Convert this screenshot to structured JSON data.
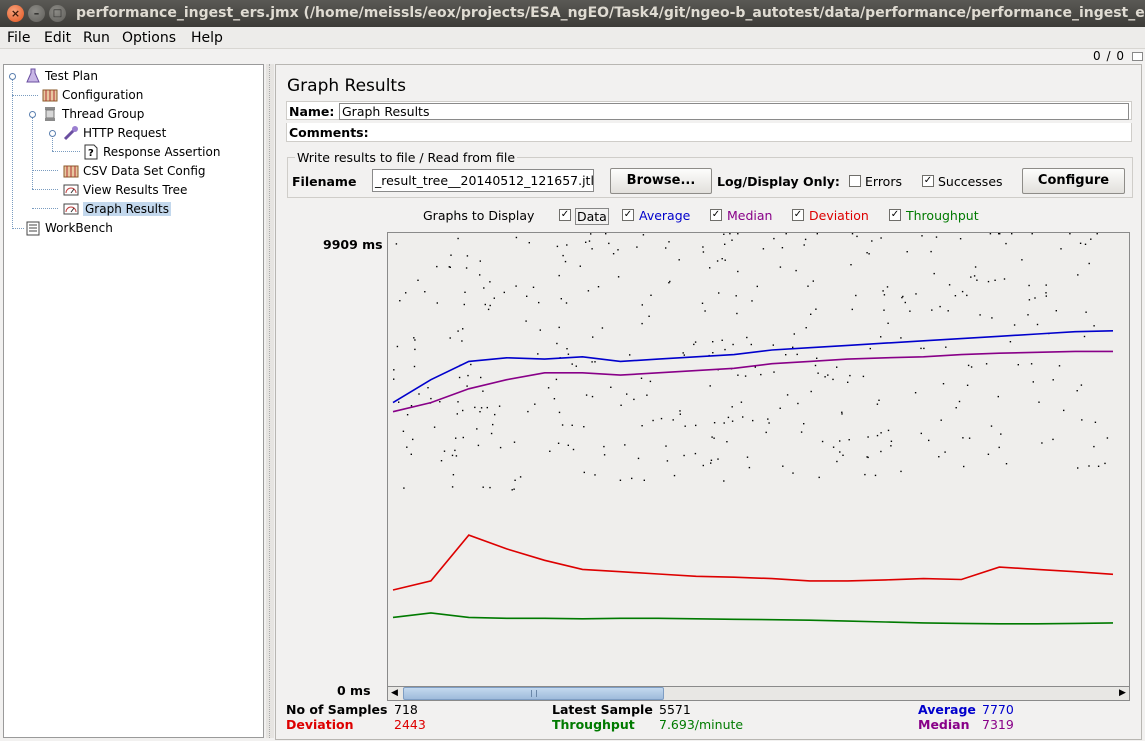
{
  "window": {
    "title": "performance_ingest_ers.jmx (/home/meissls/eox/projects/ESA_ngEO/Task4/git/ngeo-b_autotest/data/performance/performance_ingest_ers.jmx)",
    "close_glyph": "×",
    "minimize_glyph": "–",
    "maximize_glyph": "□"
  },
  "menu": {
    "file": "File",
    "edit": "Edit",
    "run": "Run",
    "options": "Options",
    "help": "Help"
  },
  "toolbar": {
    "counter": "0 / 0"
  },
  "tree": {
    "test_plan": "Test Plan",
    "configuration": "Configuration",
    "thread_group": "Thread Group",
    "http_request": "HTTP Request",
    "response_assertion": "Response Assertion",
    "csv_data_set": "CSV Data Set Config",
    "view_results_tree": "View Results Tree",
    "graph_results": "Graph Results",
    "workbench": "WorkBench"
  },
  "panel": {
    "title": "Graph Results",
    "name_label": "Name:",
    "name_value": "Graph Results",
    "comments_label": "Comments:",
    "file_section_title": "Write results to file / Read from file",
    "filename_label": "Filename",
    "filename_value": "_result_tree__20140512_121657.jtl",
    "browse_label": "Browse...",
    "log_display_label": "Log/Display Only:",
    "errors_label": "Errors",
    "errors_checked": false,
    "successes_label": "Successes",
    "successes_checked": true,
    "configure_label": "Configure"
  },
  "graphs": {
    "label": "Graphs to Display",
    "data": "Data",
    "average": "Average",
    "median": "Median",
    "deviation": "Deviation",
    "throughput": "Throughput",
    "check": "✓"
  },
  "colors": {
    "data": "#000000",
    "average": "#0000cc",
    "median": "#880088",
    "deviation": "#dd0000",
    "throughput": "#007a00"
  },
  "chart_data": {
    "type": "line",
    "ylabel_top": "9909 ms",
    "ylabel_bottom": "0 ms",
    "ylim": [
      0,
      9909
    ],
    "series": [
      {
        "name": "Average",
        "values": [
          6200,
          6700,
          7100,
          7180,
          7150,
          7200,
          7100,
          7150,
          7200,
          7250,
          7350,
          7400,
          7450,
          7500,
          7550,
          7600,
          7650,
          7700,
          7750,
          7770
        ]
      },
      {
        "name": "Median",
        "values": [
          6000,
          6200,
          6500,
          6700,
          6850,
          6850,
          6800,
          6850,
          6900,
          6950,
          7050,
          7100,
          7150,
          7180,
          7200,
          7250,
          7280,
          7300,
          7320,
          7319
        ]
      },
      {
        "name": "Deviation",
        "values": [
          2100,
          2300,
          3300,
          3000,
          2750,
          2550,
          2500,
          2450,
          2400,
          2380,
          2350,
          2300,
          2300,
          2320,
          2350,
          2330,
          2600,
          2550,
          2500,
          2443
        ]
      },
      {
        "name": "Throughput",
        "values": [
          1500,
          1600,
          1500,
          1480,
          1480,
          1470,
          1480,
          1480,
          1470,
          1460,
          1450,
          1440,
          1420,
          1400,
          1380,
          1370,
          1360,
          1360,
          1370,
          1380
        ]
      }
    ]
  },
  "stats": {
    "samples_label": "No of Samples",
    "samples_value": "718",
    "latest_label": "Latest Sample",
    "latest_value": "5571",
    "average_label": "Average",
    "average_value": "7770",
    "deviation_label": "Deviation",
    "deviation_value": "2443",
    "throughput_label": "Throughput",
    "throughput_value": "7.693/minute",
    "median_label": "Median",
    "median_value": "7319"
  }
}
